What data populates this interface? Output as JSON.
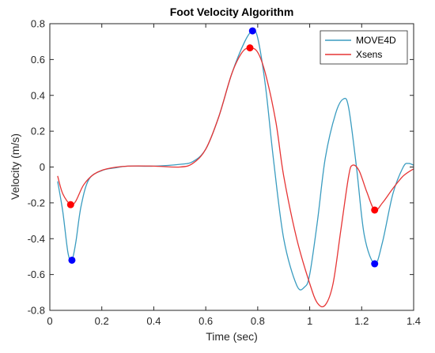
{
  "chart_data": {
    "type": "line",
    "title": "Foot Velocity Algorithm",
    "xlabel": "Time (sec)",
    "ylabel": "Velocity (m/s)",
    "xlim": [
      0,
      1.4
    ],
    "ylim": [
      -0.8,
      0.8
    ],
    "xticks": [
      0,
      0.2,
      0.4,
      0.6,
      0.8,
      1,
      1.2,
      1.4
    ],
    "xtick_labels": [
      "0",
      "0.2",
      "0.4",
      "0.6",
      "0.8",
      "1",
      "1.2",
      "1.4"
    ],
    "yticks": [
      -0.8,
      -0.6,
      -0.4,
      -0.2,
      0,
      0.2,
      0.4,
      0.6,
      0.8
    ],
    "ytick_labels": [
      "-0.8",
      "-0.6",
      "-0.4",
      "-0.2",
      "0",
      "0.2",
      "0.4",
      "0.6",
      "0.8"
    ],
    "grid": false,
    "legend_position": "top-right",
    "series": [
      {
        "name": "MOVE4D",
        "color": "#3a9cc0",
        "points": [
          [
            0.03,
            -0.08
          ],
          [
            0.05,
            -0.25
          ],
          [
            0.07,
            -0.48
          ],
          [
            0.085,
            -0.52
          ],
          [
            0.1,
            -0.42
          ],
          [
            0.12,
            -0.22
          ],
          [
            0.15,
            -0.07
          ],
          [
            0.2,
            -0.02
          ],
          [
            0.25,
            -0.005
          ],
          [
            0.3,
            0.005
          ],
          [
            0.4,
            0.005
          ],
          [
            0.5,
            0.015
          ],
          [
            0.55,
            0.03
          ],
          [
            0.6,
            0.1
          ],
          [
            0.65,
            0.28
          ],
          [
            0.7,
            0.52
          ],
          [
            0.75,
            0.7
          ],
          [
            0.78,
            0.76
          ],
          [
            0.8,
            0.72
          ],
          [
            0.83,
            0.45
          ],
          [
            0.86,
            0.05
          ],
          [
            0.9,
            -0.4
          ],
          [
            0.95,
            -0.66
          ],
          [
            0.98,
            -0.67
          ],
          [
            1.0,
            -0.6
          ],
          [
            1.03,
            -0.3
          ],
          [
            1.06,
            0.05
          ],
          [
            1.1,
            0.3
          ],
          [
            1.13,
            0.38
          ],
          [
            1.15,
            0.33
          ],
          [
            1.18,
            0.0
          ],
          [
            1.21,
            -0.38
          ],
          [
            1.25,
            -0.54
          ],
          [
            1.28,
            -0.42
          ],
          [
            1.32,
            -0.15
          ],
          [
            1.36,
            0.0
          ],
          [
            1.38,
            0.02
          ],
          [
            1.4,
            0.01
          ]
        ]
      },
      {
        "name": "Xsens",
        "color": "#e63535",
        "points": [
          [
            0.03,
            -0.05
          ],
          [
            0.05,
            -0.15
          ],
          [
            0.08,
            -0.21
          ],
          [
            0.1,
            -0.19
          ],
          [
            0.13,
            -0.1
          ],
          [
            0.17,
            -0.04
          ],
          [
            0.22,
            -0.01
          ],
          [
            0.3,
            0.005
          ],
          [
            0.4,
            0.005
          ],
          [
            0.5,
            0.0
          ],
          [
            0.55,
            0.02
          ],
          [
            0.6,
            0.1
          ],
          [
            0.65,
            0.28
          ],
          [
            0.7,
            0.52
          ],
          [
            0.74,
            0.64
          ],
          [
            0.77,
            0.665
          ],
          [
            0.8,
            0.64
          ],
          [
            0.83,
            0.52
          ],
          [
            0.87,
            0.25
          ],
          [
            0.9,
            -0.05
          ],
          [
            0.95,
            -0.4
          ],
          [
            1.0,
            -0.65
          ],
          [
            1.03,
            -0.76
          ],
          [
            1.06,
            -0.77
          ],
          [
            1.09,
            -0.65
          ],
          [
            1.12,
            -0.35
          ],
          [
            1.15,
            -0.05
          ],
          [
            1.165,
            0.01
          ],
          [
            1.19,
            -0.02
          ],
          [
            1.22,
            -0.14
          ],
          [
            1.25,
            -0.24
          ],
          [
            1.28,
            -0.2
          ],
          [
            1.32,
            -0.12
          ],
          [
            1.36,
            -0.05
          ],
          [
            1.4,
            -0.01
          ]
        ]
      }
    ],
    "markers": [
      {
        "series": "MOVE4D",
        "color": "#0000ff",
        "x": 0.085,
        "y": -0.52
      },
      {
        "series": "MOVE4D",
        "color": "#0000ff",
        "x": 0.78,
        "y": 0.76
      },
      {
        "series": "MOVE4D",
        "color": "#0000ff",
        "x": 1.25,
        "y": -0.54
      },
      {
        "series": "Xsens",
        "color": "#ff0000",
        "x": 0.08,
        "y": -0.21
      },
      {
        "series": "Xsens",
        "color": "#ff0000",
        "x": 0.77,
        "y": 0.665
      },
      {
        "series": "Xsens",
        "color": "#ff0000",
        "x": 1.25,
        "y": -0.24
      }
    ]
  }
}
